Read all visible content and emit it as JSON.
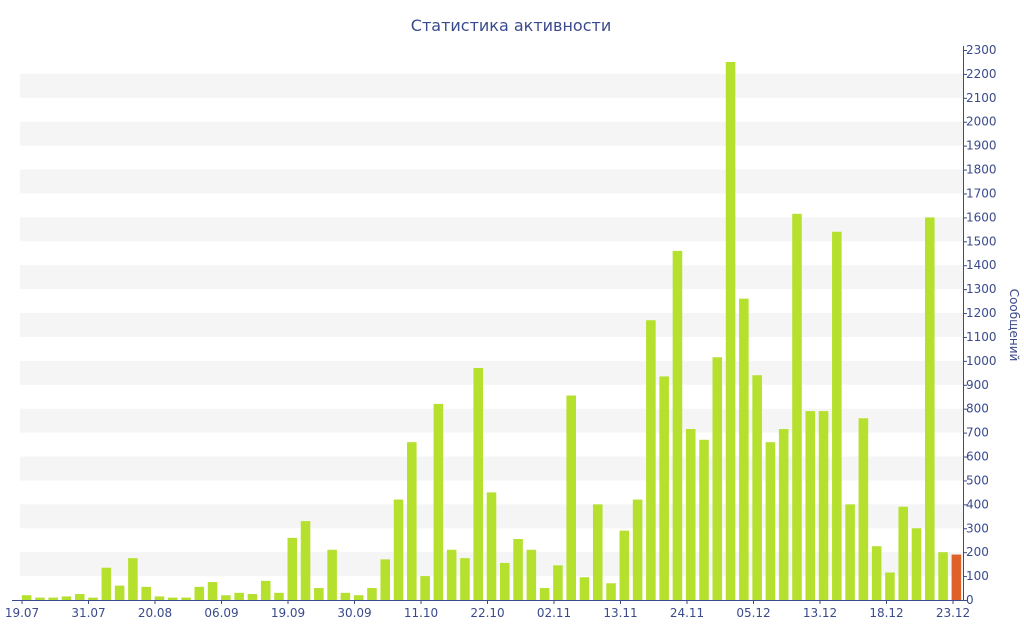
{
  "chart_data": {
    "type": "bar",
    "title": "Статистика активности",
    "xlabel": "",
    "ylabel": "Сообщений",
    "ylim": [
      0,
      2300
    ],
    "y_ticks": [
      0,
      100,
      200,
      300,
      400,
      500,
      600,
      700,
      800,
      900,
      1000,
      1100,
      1200,
      1300,
      1400,
      1500,
      1600,
      1700,
      1800,
      1900,
      2000,
      2100,
      2200,
      2300
    ],
    "x_tick_labels": [
      "19.07",
      "31.07",
      "20.08",
      "06.09",
      "19.09",
      "30.09",
      "11.10",
      "22.10",
      "02.11",
      "13.11",
      "24.11",
      "05.12",
      "13.12",
      "18.12",
      "23.12"
    ],
    "grid": true,
    "axis_position": "right",
    "colors": {
      "bar": "#b5e02e",
      "highlight": "#e0602a",
      "band": "#f5f5f5",
      "text": "#3b4a8c",
      "axis": "#3b4a8c"
    },
    "values": [
      20,
      10,
      10,
      15,
      25,
      10,
      135,
      60,
      175,
      55,
      15,
      10,
      10,
      55,
      75,
      20,
      30,
      25,
      80,
      30,
      260,
      330,
      50,
      210,
      30,
      20,
      50,
      170,
      420,
      660,
      100,
      820,
      210,
      175,
      970,
      450,
      155,
      255,
      210,
      50,
      145,
      855,
      95,
      400,
      70,
      290,
      420,
      1170,
      935,
      1460,
      715,
      670,
      1015,
      2250,
      1260,
      940,
      660,
      715,
      1615,
      790,
      790,
      1540,
      400,
      760,
      225,
      115,
      390,
      300,
      1600,
      200,
      190
    ],
    "highlight_index": 70
  }
}
